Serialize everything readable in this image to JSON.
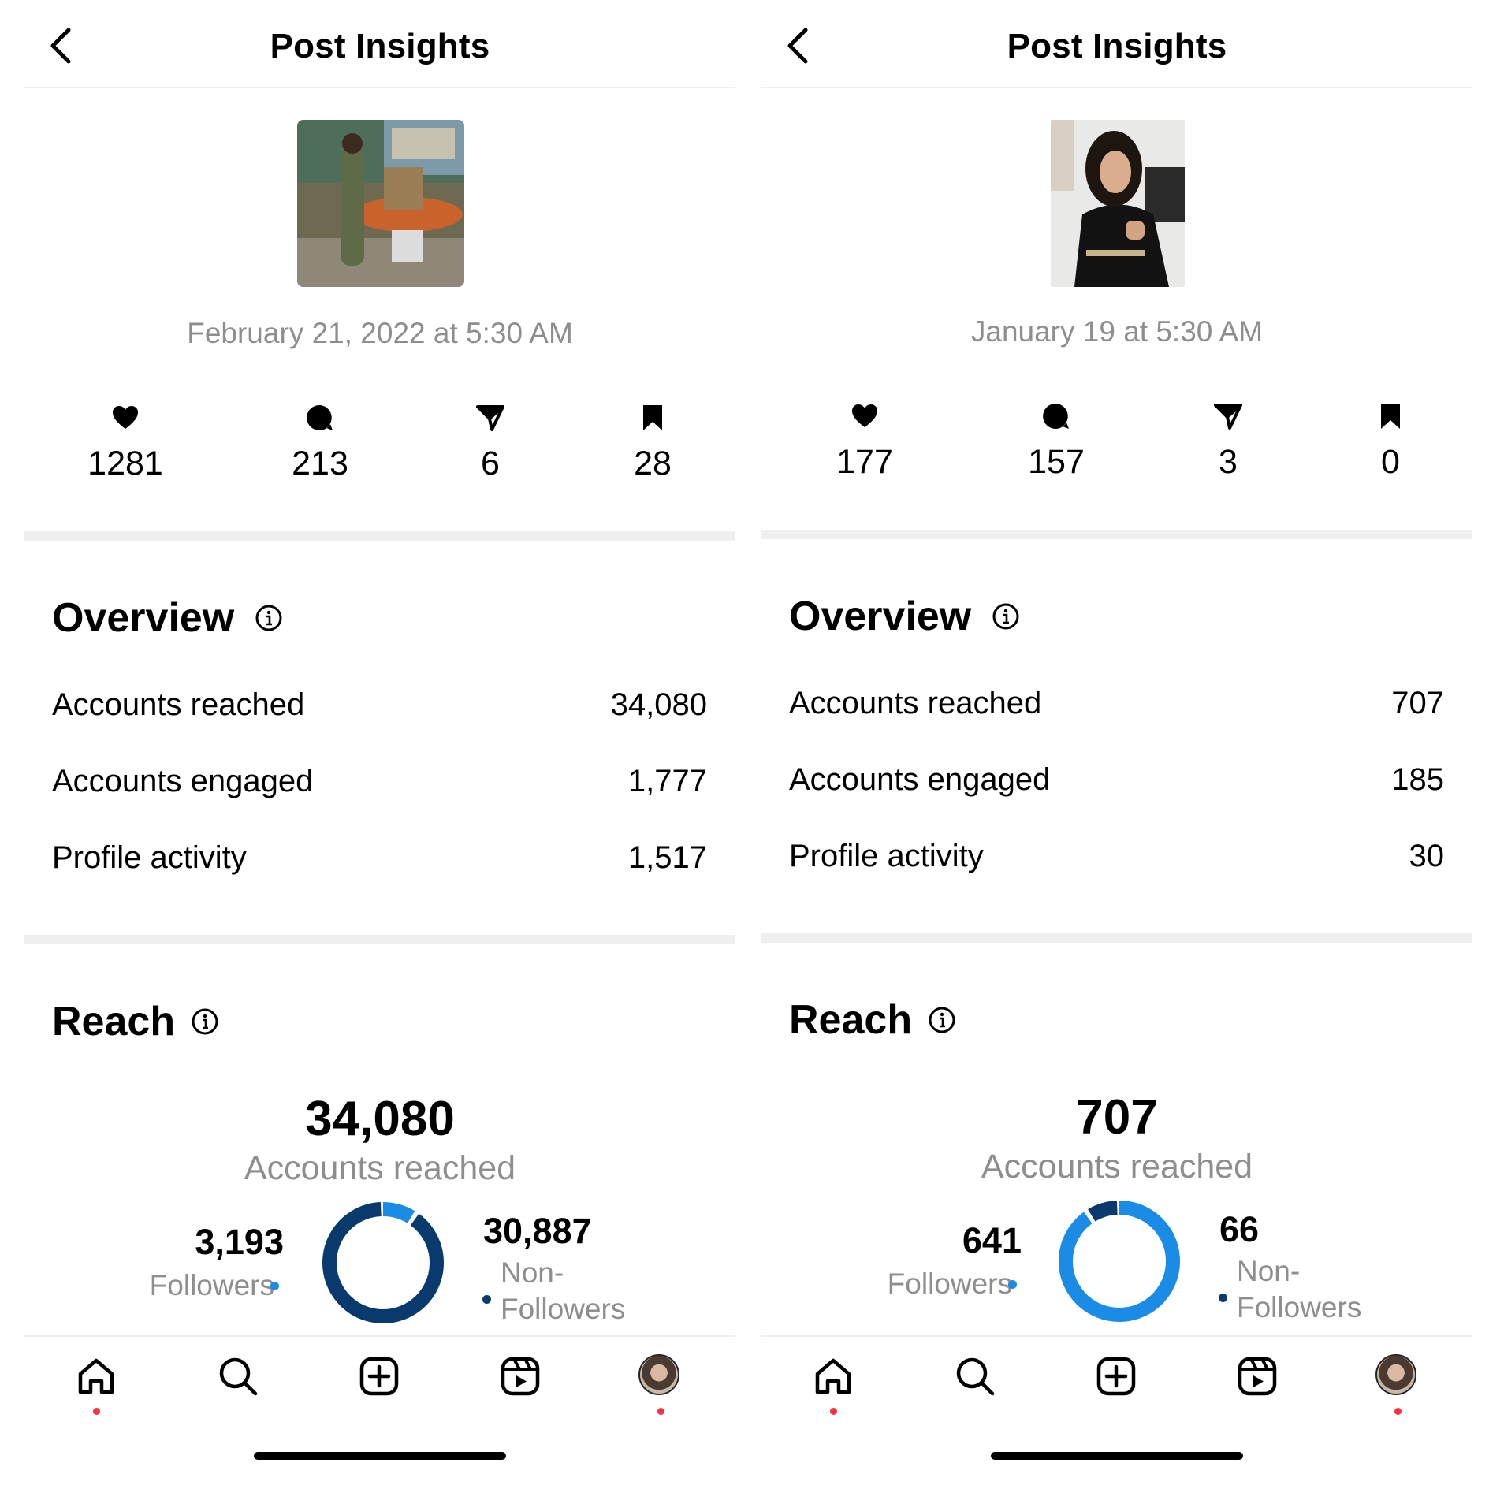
{
  "screens": [
    {
      "header": {
        "title": "Post Insights"
      },
      "post": {
        "date": "February 21, 2022 at 5:30 AM"
      },
      "stats": {
        "likes": "1281",
        "comments": "213",
        "shares": "6",
        "saves": "28"
      },
      "overview": {
        "title": "Overview",
        "rows": [
          {
            "label": "Accounts reached",
            "value": "34,080"
          },
          {
            "label": "Accounts engaged",
            "value": "1,777"
          },
          {
            "label": "Profile activity",
            "value": "1,517"
          }
        ]
      },
      "reach": {
        "title": "Reach",
        "total": "34,080",
        "total_label": "Accounts reached",
        "followers": {
          "value": "3,193",
          "label": "Followers"
        },
        "non_followers": {
          "value": "30,887",
          "label_line1": "Non-",
          "label_line2": "Followers"
        },
        "donut": {
          "followers_fraction": 0.094,
          "highlight": "followers"
        }
      }
    },
    {
      "header": {
        "title": "Post Insights"
      },
      "post": {
        "date": "January 19 at 5:30 AM"
      },
      "stats": {
        "likes": "177",
        "comments": "157",
        "shares": "3",
        "saves": "0"
      },
      "overview": {
        "title": "Overview",
        "rows": [
          {
            "label": "Accounts reached",
            "value": "707"
          },
          {
            "label": "Accounts engaged",
            "value": "185"
          },
          {
            "label": "Profile activity",
            "value": "30"
          }
        ]
      },
      "reach": {
        "title": "Reach",
        "total": "707",
        "total_label": "Accounts reached",
        "followers": {
          "value": "641",
          "label": "Followers"
        },
        "non_followers": {
          "value": "66",
          "label_line1": "Non-",
          "label_line2": "Followers"
        },
        "donut": {
          "followers_fraction": 0.907,
          "highlight": "followers"
        }
      }
    }
  ],
  "colors": {
    "followers": "#1a8ce6",
    "non_followers": "#083a6e",
    "notification_dot": "#ff3040",
    "divider": "#efefef",
    "secondary_text": "#8e8e8e"
  },
  "icons": [
    "chevron-left-icon",
    "heart-icon",
    "comment-icon",
    "share-icon",
    "bookmark-icon",
    "info-icon",
    "home-icon",
    "search-icon",
    "create-icon",
    "reels-icon",
    "profile-avatar"
  ]
}
